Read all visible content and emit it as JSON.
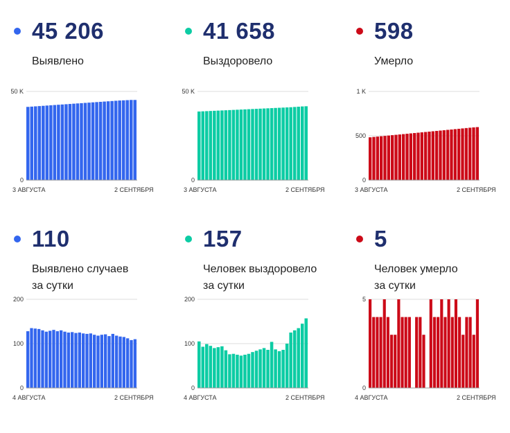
{
  "panels": [
    {
      "value": "45 206",
      "label1": "Выявлено",
      "label2": "",
      "color": "#3366ee",
      "chart_data": {
        "type": "bar",
        "ylim": [
          0,
          50000
        ],
        "yticks": [
          {
            "v": 0,
            "t": "0"
          },
          {
            "v": 50000,
            "t": "50 K"
          }
        ],
        "x_start": "3 АВГУСТА",
        "x_end": "2 СЕНТЯБРЯ",
        "values": [
          41300,
          41450,
          41600,
          41750,
          41900,
          42050,
          42200,
          42350,
          42500,
          42650,
          42800,
          42950,
          43100,
          43250,
          43400,
          43550,
          43700,
          43850,
          44000,
          44150,
          44300,
          44450,
          44600,
          44750,
          44900,
          45000,
          45100,
          45206,
          45206
        ]
      }
    },
    {
      "value": "41 658",
      "label1": "Выздоровело",
      "label2": "",
      "color": "#0ccca4",
      "chart_data": {
        "type": "bar",
        "ylim": [
          0,
          50000
        ],
        "yticks": [
          {
            "v": 0,
            "t": "0"
          },
          {
            "v": 50000,
            "t": "50 K"
          }
        ],
        "x_start": "3 АВГУСТА",
        "x_end": "2 СЕНТЯБРЯ",
        "values": [
          38700,
          38800,
          38900,
          39000,
          39100,
          39200,
          39300,
          39400,
          39500,
          39600,
          39700,
          39800,
          39900,
          40000,
          40100,
          40200,
          40300,
          40400,
          40500,
          40600,
          40700,
          40800,
          40900,
          41000,
          41100,
          41250,
          41400,
          41550,
          41658
        ]
      }
    },
    {
      "value": "598",
      "label1": "Умерло",
      "label2": "",
      "color": "#cc0a18",
      "chart_data": {
        "type": "bar",
        "ylim": [
          0,
          1000
        ],
        "yticks": [
          {
            "v": 0,
            "t": "0"
          },
          {
            "v": 500,
            "t": "500"
          },
          {
            "v": 1000,
            "t": "1 K"
          }
        ],
        "x_start": "3 АВГУСТА",
        "x_end": "2 СЕНТЯБРЯ",
        "values": [
          483,
          487,
          491,
          495,
          499,
          503,
          507,
          511,
          515,
          519,
          523,
          527,
          531,
          535,
          539,
          543,
          547,
          551,
          555,
          559,
          563,
          567,
          571,
          575,
          579,
          583,
          587,
          591,
          595,
          598
        ]
      }
    },
    {
      "value": "110",
      "label1": "Выявлено случаев",
      "label2": "за сутки",
      "color": "#3366ee",
      "chart_data": {
        "type": "bar",
        "ylim": [
          0,
          200
        ],
        "yticks": [
          {
            "v": 0,
            "t": "0"
          },
          {
            "v": 100,
            "t": "100"
          },
          {
            "v": 200,
            "t": "200"
          }
        ],
        "x_start": "4 АВГУСТА",
        "x_end": "2 СЕНТЯБРЯ",
        "values": [
          128,
          135,
          134,
          133,
          130,
          127,
          129,
          131,
          128,
          130,
          127,
          125,
          126,
          124,
          125,
          123,
          122,
          123,
          120,
          118,
          120,
          121,
          117,
          122,
          118,
          116,
          115,
          112,
          108,
          110
        ]
      }
    },
    {
      "value": "157",
      "label1": "Человек выздоровело",
      "label2": "за сутки",
      "color": "#0ccca4",
      "chart_data": {
        "type": "bar",
        "ylim": [
          0,
          200
        ],
        "yticks": [
          {
            "v": 0,
            "t": "0"
          },
          {
            "v": 100,
            "t": "100"
          },
          {
            "v": 200,
            "t": "200"
          }
        ],
        "x_start": "4 АВГУСТА",
        "x_end": "2 СЕНТЯБРЯ",
        "values": [
          105,
          93,
          99,
          95,
          90,
          92,
          94,
          85,
          76,
          77,
          75,
          73,
          75,
          77,
          81,
          84,
          87,
          90,
          86,
          104,
          87,
          83,
          86,
          100,
          125,
          130,
          135,
          145,
          157
        ]
      }
    },
    {
      "value": "5",
      "label1": "Человек умерло",
      "label2": "за сутки",
      "color": "#cc0a18",
      "chart_data": {
        "type": "bar",
        "ylim": [
          0,
          5
        ],
        "yticks": [
          {
            "v": 0,
            "t": "0"
          },
          {
            "v": 5,
            "t": "5"
          }
        ],
        "x_start": "4 АВГУСТА",
        "x_end": "2 СЕНТЯБРЯ",
        "values": [
          5,
          4,
          4,
          4,
          5,
          4,
          3,
          3,
          5,
          4,
          4,
          4,
          0,
          4,
          4,
          3,
          0,
          5,
          4,
          4,
          5,
          4,
          5,
          4,
          5,
          4,
          3,
          4,
          4,
          3,
          5
        ]
      }
    }
  ]
}
